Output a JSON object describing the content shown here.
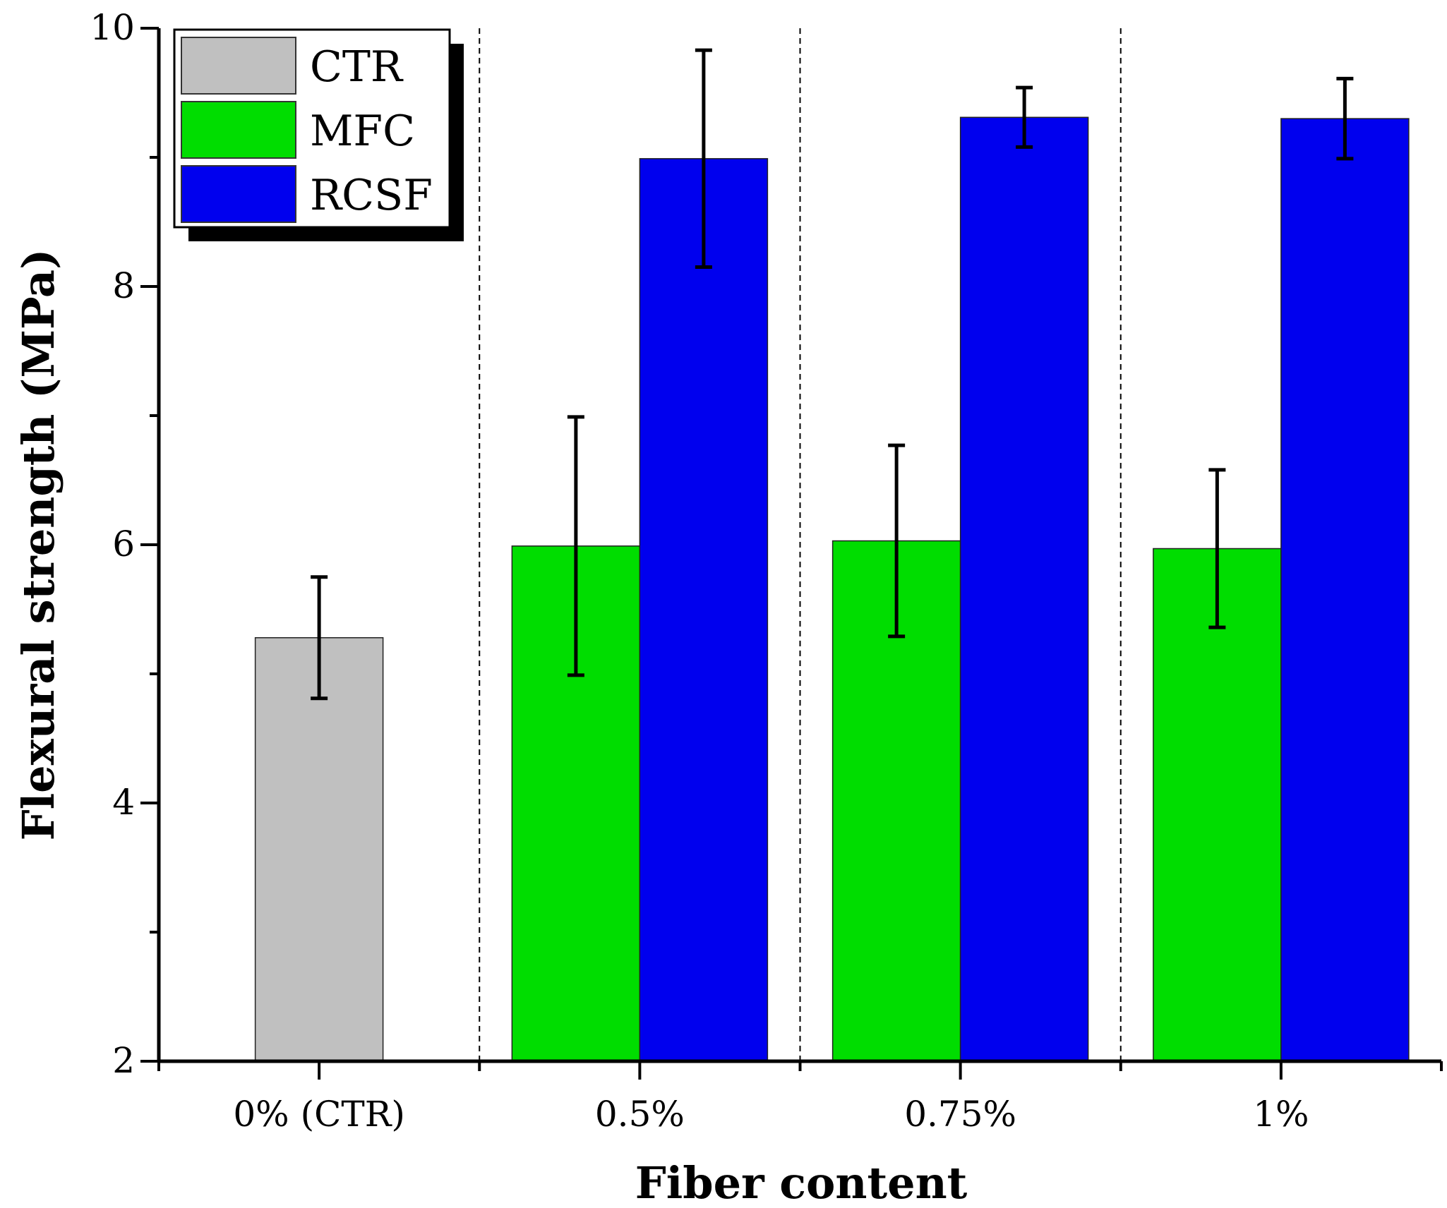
{
  "chart_data": {
    "type": "bar",
    "title": "",
    "xlabel": "Fiber content",
    "ylabel": "Flexural strength (MPa)",
    "ylim": [
      2,
      10
    ],
    "yticks": [
      2,
      4,
      6,
      8,
      10
    ],
    "grid": false,
    "legend_position": "top-left",
    "categories": [
      "0% (CTR)",
      "0.5%",
      "0.75%",
      "1%"
    ],
    "series": [
      {
        "name": "CTR",
        "color": "#c0c0c0",
        "values": [
          5.28,
          null,
          null,
          null
        ],
        "errors": [
          0.47,
          null,
          null,
          null
        ]
      },
      {
        "name": "MFC",
        "color": "#00dd00",
        "values": [
          null,
          5.99,
          6.03,
          5.97
        ],
        "errors": [
          null,
          1.0,
          0.74,
          0.61
        ]
      },
      {
        "name": "RCSF",
        "color": "#0000ee",
        "values": [
          null,
          8.99,
          9.31,
          9.3
        ],
        "errors": [
          null,
          0.84,
          0.23,
          0.31
        ]
      }
    ]
  }
}
